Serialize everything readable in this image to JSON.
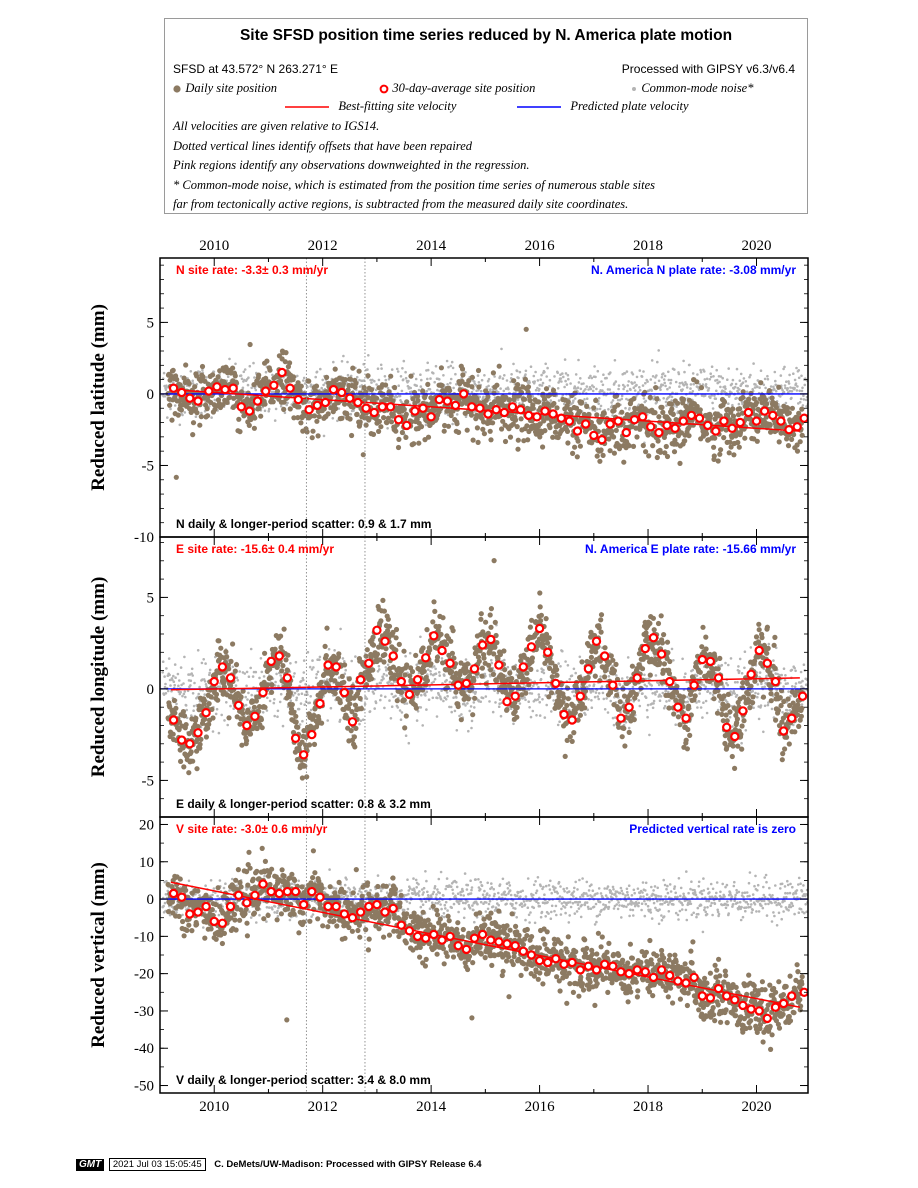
{
  "legend": {
    "title": "Site SFSD position time series reduced by N. America plate motion",
    "site_location": "SFSD at 43.572° N 263.271° E",
    "processing": "Processed with GIPSY v6.3/v6.4",
    "daily_label": "Daily site position",
    "avg_label": "30-day-average site position",
    "cm_label": "Common-mode noise*",
    "best_fit_label": "Best-fitting site velocity",
    "plate_label": "Predicted plate velocity",
    "note1": "All velocities are given relative to IGS14.",
    "note2": "Dotted vertical lines identify offsets that have been repaired",
    "note3": "Pink regions identify any observations downweighted in the regression.",
    "note4": "* Common-mode noise, which is estimated from the position time series of numerous stable sites",
    "note5": "far from tectonically active regions, is subtracted from the measured daily site coordinates.",
    "colors": {
      "daily": "#8c7a62",
      "avg": "#ff0000",
      "common_mode": "#b4b4b4",
      "best_fit": "#ff0000",
      "plate": "#0000ff"
    }
  },
  "x_ticks": [
    "2010",
    "2012",
    "2014",
    "2016",
    "2018",
    "2020"
  ],
  "chart_data": [
    {
      "type": "scatter",
      "component": "N",
      "ylabel": "Reduced latitude (mm)",
      "ylim": [
        -10,
        9.5
      ],
      "xlim": [
        2009.0,
        2020.95
      ],
      "yticks": [
        5,
        0,
        -5,
        -10
      ],
      "yticklabels": [
        "5",
        "0",
        "-5",
        "-10"
      ],
      "site_rate": "N site rate:  -3.3± 0.3 mm/yr",
      "plate_rate": "N. America N plate rate: -3.08 mm/yr",
      "scatter": "N daily & longer-period scatter:   0.9 &   1.7 mm",
      "offsets": [
        2011.7,
        2012.78
      ],
      "fit": {
        "x": [
          2009.2,
          2020.8
        ],
        "y": [
          0.3,
          -2.6
        ]
      },
      "plate_line": 0,
      "avg": [
        [
          2009.25,
          0.4
        ],
        [
          2009.4,
          0.1
        ],
        [
          2009.55,
          -0.3
        ],
        [
          2009.7,
          -0.5
        ],
        [
          2009.9,
          0.2
        ],
        [
          2010.05,
          0.5
        ],
        [
          2010.2,
          0.3
        ],
        [
          2010.35,
          0.4
        ],
        [
          2010.5,
          -0.9
        ],
        [
          2010.65,
          -1.2
        ],
        [
          2010.8,
          -0.5
        ],
        [
          2010.95,
          0.2
        ],
        [
          2011.1,
          0.6
        ],
        [
          2011.25,
          1.5
        ],
        [
          2011.4,
          0.4
        ],
        [
          2011.55,
          -0.4
        ],
        [
          2011.75,
          -1.1
        ],
        [
          2011.9,
          -0.8
        ],
        [
          2012.05,
          -0.6
        ],
        [
          2012.2,
          0.3
        ],
        [
          2012.35,
          0.1
        ],
        [
          2012.5,
          -0.3
        ],
        [
          2012.65,
          -0.6
        ],
        [
          2012.8,
          -1.0
        ],
        [
          2012.95,
          -1.3
        ],
        [
          2013.1,
          -0.9
        ],
        [
          2013.25,
          -0.9
        ],
        [
          2013.4,
          -1.8
        ],
        [
          2013.55,
          -2.2
        ],
        [
          2013.7,
          -1.2
        ],
        [
          2013.85,
          -1.0
        ],
        [
          2014.0,
          -1.6
        ],
        [
          2014.15,
          -0.4
        ],
        [
          2014.3,
          -0.5
        ],
        [
          2014.45,
          -0.8
        ],
        [
          2014.6,
          0.0
        ],
        [
          2014.75,
          -0.9
        ],
        [
          2014.9,
          -1.0
        ],
        [
          2015.05,
          -1.4
        ],
        [
          2015.2,
          -1.1
        ],
        [
          2015.35,
          -1.3
        ],
        [
          2015.5,
          -0.9
        ],
        [
          2015.65,
          -1.1
        ],
        [
          2015.8,
          -1.5
        ],
        [
          2015.95,
          -1.6
        ],
        [
          2016.1,
          -1.2
        ],
        [
          2016.25,
          -1.4
        ],
        [
          2016.4,
          -1.7
        ],
        [
          2016.55,
          -1.9
        ],
        [
          2016.7,
          -2.6
        ],
        [
          2016.85,
          -2.1
        ],
        [
          2017.0,
          -2.9
        ],
        [
          2017.15,
          -3.2
        ],
        [
          2017.3,
          -2.1
        ],
        [
          2017.45,
          -1.9
        ],
        [
          2017.6,
          -2.7
        ],
        [
          2017.75,
          -1.8
        ],
        [
          2017.9,
          -1.6
        ],
        [
          2018.05,
          -2.3
        ],
        [
          2018.2,
          -2.7
        ],
        [
          2018.35,
          -2.2
        ],
        [
          2018.5,
          -2.4
        ],
        [
          2018.65,
          -1.9
        ],
        [
          2018.8,
          -1.5
        ],
        [
          2018.95,
          -1.7
        ],
        [
          2019.1,
          -2.2
        ],
        [
          2019.25,
          -2.6
        ],
        [
          2019.4,
          -1.9
        ],
        [
          2019.55,
          -2.4
        ],
        [
          2019.7,
          -2.0
        ],
        [
          2019.85,
          -1.3
        ],
        [
          2020.0,
          -1.9
        ],
        [
          2020.15,
          -1.2
        ],
        [
          2020.3,
          -1.5
        ],
        [
          2020.45,
          -1.9
        ],
        [
          2020.6,
          -2.5
        ],
        [
          2020.75,
          -2.3
        ],
        [
          2020.88,
          -1.7
        ]
      ]
    },
    {
      "type": "scatter",
      "component": "E",
      "ylabel": "Reduced longitude (mm)",
      "ylim": [
        -7,
        8.3
      ],
      "xlim": [
        2009.0,
        2020.95
      ],
      "yticks": [
        5,
        0,
        -5
      ],
      "yticklabels": [
        "5",
        "0",
        "-5"
      ],
      "site_rate": "E site rate:  -15.6± 0.4 mm/yr",
      "plate_rate": "N. America E plate rate: -15.66 mm/yr",
      "scatter": "E daily & longer-period scatter:   0.8 &   3.2 mm",
      "offsets": [
        2011.7,
        2012.78
      ],
      "fit": {
        "x": [
          2009.2,
          2020.8
        ],
        "y": [
          -0.05,
          0.6
        ]
      },
      "plate_line": 0,
      "seasonal": {
        "amplitude": 2.6,
        "phase": 0.62
      },
      "avg": [
        [
          2009.25,
          -1.7
        ],
        [
          2009.4,
          -2.8
        ],
        [
          2009.55,
          -3.0
        ],
        [
          2009.7,
          -2.4
        ],
        [
          2009.85,
          -1.3
        ],
        [
          2010.0,
          0.4
        ],
        [
          2010.15,
          1.2
        ],
        [
          2010.3,
          0.6
        ],
        [
          2010.45,
          -0.9
        ],
        [
          2010.6,
          -2.0
        ],
        [
          2010.75,
          -1.5
        ],
        [
          2010.9,
          -0.2
        ],
        [
          2011.05,
          1.5
        ],
        [
          2011.2,
          1.8
        ],
        [
          2011.35,
          0.6
        ],
        [
          2011.5,
          -2.7
        ],
        [
          2011.65,
          -3.6
        ],
        [
          2011.8,
          -2.5
        ],
        [
          2011.95,
          -0.8
        ],
        [
          2012.1,
          1.3
        ],
        [
          2012.25,
          1.2
        ],
        [
          2012.4,
          -0.2
        ],
        [
          2012.55,
          -1.8
        ],
        [
          2012.7,
          0.5
        ],
        [
          2012.85,
          1.4
        ],
        [
          2013.0,
          3.2
        ],
        [
          2013.15,
          2.6
        ],
        [
          2013.3,
          1.8
        ],
        [
          2013.45,
          0.4
        ],
        [
          2013.6,
          -0.3
        ],
        [
          2013.75,
          0.5
        ],
        [
          2013.9,
          1.7
        ],
        [
          2014.05,
          2.9
        ],
        [
          2014.2,
          2.1
        ],
        [
          2014.35,
          1.4
        ],
        [
          2014.5,
          0.2
        ],
        [
          2014.65,
          0.3
        ],
        [
          2014.8,
          1.1
        ],
        [
          2014.95,
          2.4
        ],
        [
          2015.1,
          2.7
        ],
        [
          2015.25,
          1.3
        ],
        [
          2015.4,
          -0.7
        ],
        [
          2015.55,
          -0.4
        ],
        [
          2015.7,
          1.2
        ],
        [
          2015.85,
          2.3
        ],
        [
          2016.0,
          3.3
        ],
        [
          2016.15,
          2.0
        ],
        [
          2016.3,
          0.3
        ],
        [
          2016.45,
          -1.4
        ],
        [
          2016.6,
          -1.7
        ],
        [
          2016.75,
          -0.4
        ],
        [
          2016.9,
          1.1
        ],
        [
          2017.05,
          2.6
        ],
        [
          2017.2,
          1.8
        ],
        [
          2017.35,
          0.2
        ],
        [
          2017.5,
          -1.6
        ],
        [
          2017.65,
          -1.0
        ],
        [
          2017.8,
          0.6
        ],
        [
          2017.95,
          2.2
        ],
        [
          2018.1,
          2.8
        ],
        [
          2018.25,
          1.9
        ],
        [
          2018.4,
          0.4
        ],
        [
          2018.55,
          -1.0
        ],
        [
          2018.7,
          -1.6
        ],
        [
          2018.85,
          0.2
        ],
        [
          2019.0,
          1.6
        ],
        [
          2019.15,
          1.5
        ],
        [
          2019.3,
          0.6
        ],
        [
          2019.45,
          -2.1
        ],
        [
          2019.6,
          -2.6
        ],
        [
          2019.75,
          -1.2
        ],
        [
          2019.9,
          0.8
        ],
        [
          2020.05,
          2.1
        ],
        [
          2020.2,
          1.4
        ],
        [
          2020.35,
          0.4
        ],
        [
          2020.5,
          -2.3
        ],
        [
          2020.65,
          -1.6
        ],
        [
          2020.85,
          -0.4
        ]
      ]
    },
    {
      "type": "scatter",
      "component": "V",
      "ylabel": "Reduced vertical (mm)",
      "ylim": [
        -52,
        22
      ],
      "xlim": [
        2009.0,
        2020.95
      ],
      "yticks": [
        20,
        10,
        0,
        -10,
        -20,
        -30,
        -40,
        -50
      ],
      "yticklabels": [
        "20",
        "10",
        "0",
        "-10",
        "-20",
        "-30",
        "-40",
        "-50"
      ],
      "site_rate": "V site rate:  -3.0± 0.6 mm/yr",
      "plate_rate": "Predicted vertical rate is zero",
      "scatter": "V daily & longer-period scatter:   3.4 &   8.0 mm",
      "offsets": [
        2011.7,
        2012.78
      ],
      "fit": {
        "x": [
          2009.2,
          2020.8
        ],
        "y": [
          4.5,
          -29.0
        ]
      },
      "plate_line": 0,
      "avg": [
        [
          2009.25,
          1.5
        ],
        [
          2009.4,
          0.5
        ],
        [
          2009.55,
          -4.0
        ],
        [
          2009.7,
          -3.5
        ],
        [
          2009.85,
          -2.0
        ],
        [
          2010.0,
          -6.0
        ],
        [
          2010.15,
          -6.5
        ],
        [
          2010.3,
          -2.0
        ],
        [
          2010.45,
          1.0
        ],
        [
          2010.6,
          -1.0
        ],
        [
          2010.75,
          1.0
        ],
        [
          2010.9,
          4.0
        ],
        [
          2011.05,
          2.0
        ],
        [
          2011.2,
          1.5
        ],
        [
          2011.35,
          2.0
        ],
        [
          2011.5,
          2.0
        ],
        [
          2011.65,
          -1.5
        ],
        [
          2011.8,
          2.0
        ],
        [
          2011.95,
          0.5
        ],
        [
          2012.1,
          -2.0
        ],
        [
          2012.25,
          -2.0
        ],
        [
          2012.4,
          -4.0
        ],
        [
          2012.55,
          -5.0
        ],
        [
          2012.7,
          -3.5
        ],
        [
          2012.85,
          -2.0
        ],
        [
          2013.0,
          -1.5
        ],
        [
          2013.15,
          -3.5
        ],
        [
          2013.3,
          -2.5
        ],
        [
          2013.45,
          -7.0
        ],
        [
          2013.6,
          -8.5
        ],
        [
          2013.75,
          -10.0
        ],
        [
          2013.9,
          -10.5
        ],
        [
          2014.05,
          -9.5
        ],
        [
          2014.2,
          -11.0
        ],
        [
          2014.35,
          -10.0
        ],
        [
          2014.5,
          -12.5
        ],
        [
          2014.65,
          -13.5
        ],
        [
          2014.8,
          -10.5
        ],
        [
          2014.95,
          -9.5
        ],
        [
          2015.1,
          -11.0
        ],
        [
          2015.25,
          -11.5
        ],
        [
          2015.4,
          -12.0
        ],
        [
          2015.55,
          -12.5
        ],
        [
          2015.7,
          -14.0
        ],
        [
          2015.85,
          -15.0
        ],
        [
          2016.0,
          -16.5
        ],
        [
          2016.15,
          -17.0
        ],
        [
          2016.3,
          -16.0
        ],
        [
          2016.45,
          -17.5
        ],
        [
          2016.6,
          -17.0
        ],
        [
          2016.75,
          -19.0
        ],
        [
          2016.9,
          -18.0
        ],
        [
          2017.05,
          -19.0
        ],
        [
          2017.2,
          -17.5
        ],
        [
          2017.35,
          -18.0
        ],
        [
          2017.5,
          -19.5
        ],
        [
          2017.65,
          -20.0
        ],
        [
          2017.8,
          -19.0
        ],
        [
          2017.95,
          -19.5
        ],
        [
          2018.1,
          -21.0
        ],
        [
          2018.25,
          -19.0
        ],
        [
          2018.4,
          -20.5
        ],
        [
          2018.55,
          -22.0
        ],
        [
          2018.7,
          -22.5
        ],
        [
          2018.85,
          -21.0
        ],
        [
          2019.0,
          -26.0
        ],
        [
          2019.15,
          -26.5
        ],
        [
          2019.3,
          -24.0
        ],
        [
          2019.45,
          -26.0
        ],
        [
          2019.6,
          -27.0
        ],
        [
          2019.75,
          -28.5
        ],
        [
          2019.9,
          -29.5
        ],
        [
          2020.05,
          -30.0
        ],
        [
          2020.2,
          -32.0
        ],
        [
          2020.35,
          -29.0
        ],
        [
          2020.5,
          -28.0
        ],
        [
          2020.65,
          -26.0
        ],
        [
          2020.88,
          -25.0
        ]
      ]
    }
  ],
  "footer": {
    "logo": "GMT",
    "date": "2021 Jul 03 15:05:45",
    "credit": "C. DeMets/UW-Madison: Processed with GIPSY Release 6.4"
  }
}
